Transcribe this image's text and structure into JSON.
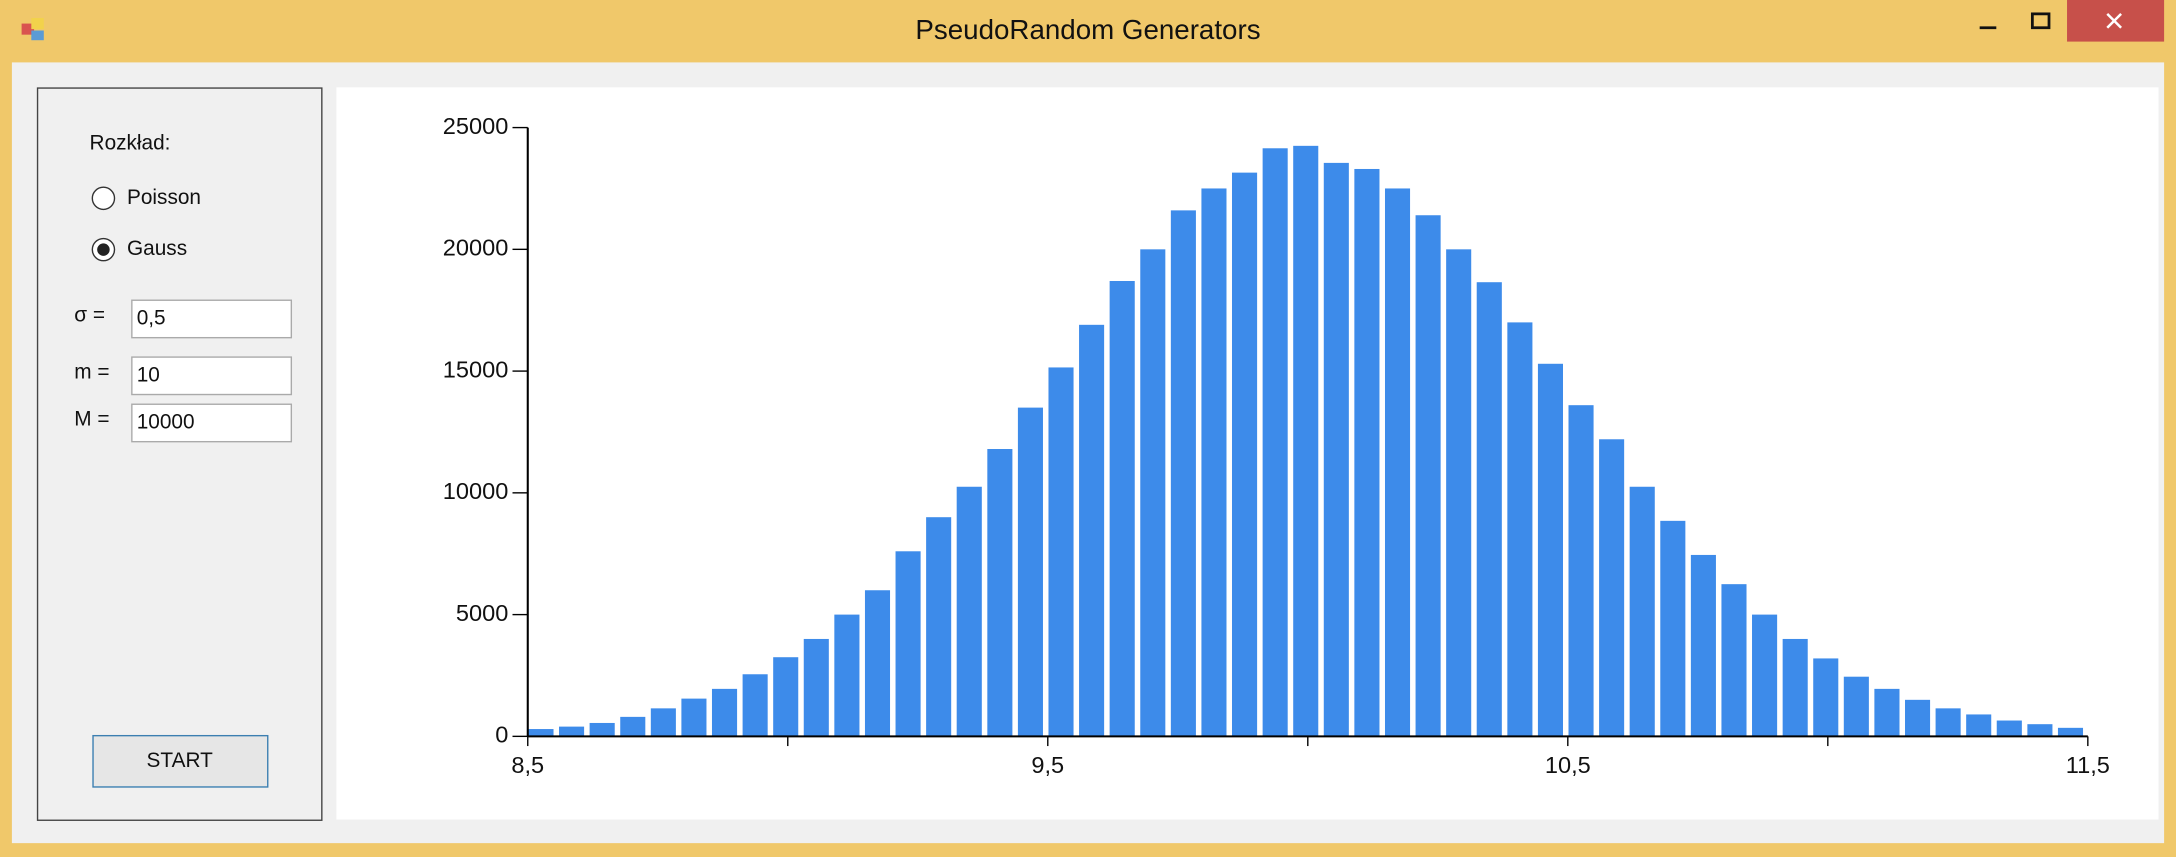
{
  "window": {
    "title": "PseudoRandom Generators"
  },
  "panel": {
    "label": "Rozkład:",
    "options": [
      "Poisson",
      "Gauss"
    ],
    "selected": 1,
    "fields": [
      {
        "label": "σ =",
        "value": "0,5"
      },
      {
        "label": "m =",
        "value": "10"
      },
      {
        "label": "M =",
        "value": "10000"
      }
    ],
    "button": "START"
  },
  "chart_data": {
    "type": "histogram",
    "color": "#3d8bea",
    "bins": [
      8.5,
      8.5588,
      8.6176,
      8.6765,
      8.7353,
      8.7941,
      8.8529,
      8.9118,
      8.9706,
      9.0294,
      9.0882,
      9.1471,
      9.2059,
      9.2647,
      9.3235,
      9.3824,
      9.4412,
      9.5,
      9.5588,
      9.6176,
      9.6765,
      9.7353,
      9.7941,
      9.8529,
      9.9118,
      9.9706,
      10.0294,
      10.0882,
      10.1471,
      10.2059,
      10.2647,
      10.3235,
      10.3824,
      10.4412,
      10.5,
      10.5588,
      10.6176,
      10.6765,
      10.7353,
      10.7941,
      10.8529,
      10.9118,
      10.9706,
      11.0294,
      11.0882,
      11.1471,
      11.2059,
      11.2647,
      11.3235,
      11.3824,
      11.4412,
      11.5
    ],
    "values": [
      300,
      400,
      550,
      800,
      1150,
      1550,
      1950,
      2550,
      3250,
      4000,
      5000,
      6000,
      7600,
      9000,
      10250,
      11800,
      13500,
      15150,
      16900,
      18700,
      20000,
      21600,
      22500,
      23150,
      24150,
      24250,
      23550,
      23300,
      22500,
      21400,
      20000,
      18650,
      17000,
      15300,
      13600,
      12200,
      10250,
      8850,
      7450,
      6250,
      5000,
      4000,
      3200,
      2450,
      1950,
      1500,
      1150,
      900,
      650,
      500,
      350
    ],
    "xlim": [
      8.5,
      11.5
    ],
    "xticks": [
      {
        "value": 8.5,
        "label": "8,5"
      },
      {
        "value": 9.5,
        "label": "9,5"
      },
      {
        "value": 10.5,
        "label": "10,5"
      },
      {
        "value": 11.5,
        "label": "11,5"
      }
    ],
    "xminor_ticks": [
      9,
      10,
      11
    ],
    "ylim": [
      0,
      25000
    ],
    "yticks": [
      0,
      5000,
      10000,
      15000,
      20000,
      25000
    ]
  }
}
